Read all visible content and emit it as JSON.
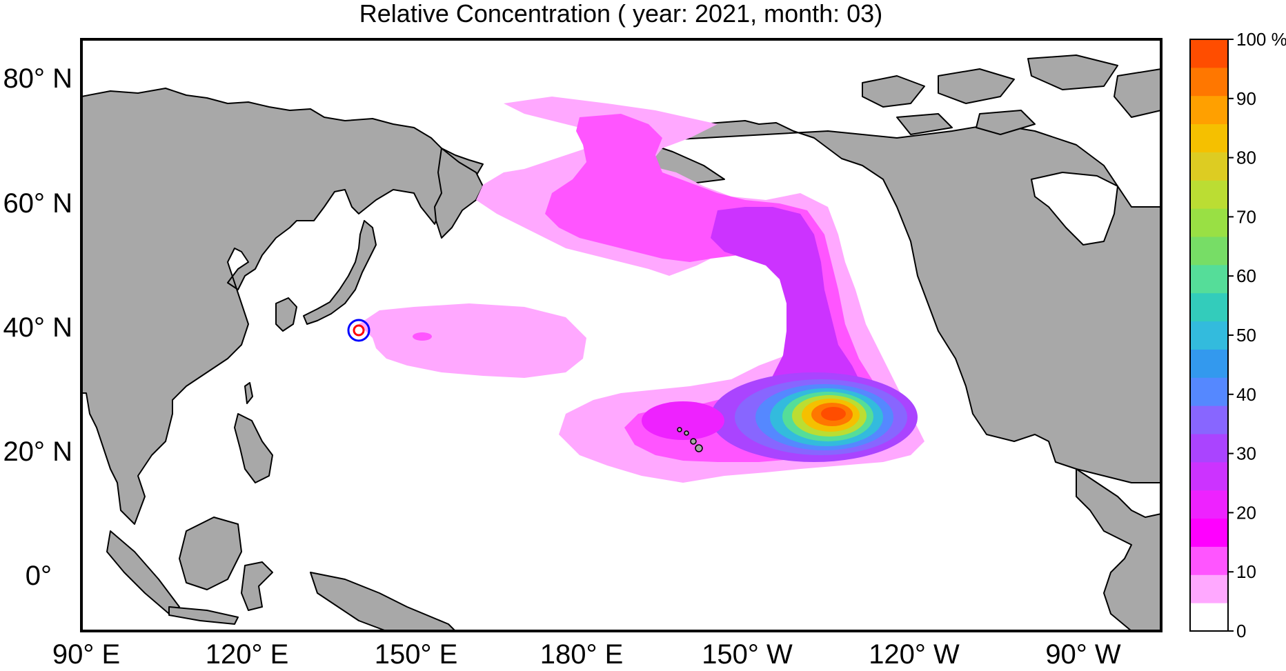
{
  "title": "Relative Concentration ( year: 2021, month: 03)",
  "lat_labels": [
    "80° N",
    "60° N",
    "40° N",
    "20° N",
    "0°"
  ],
  "lon_labels": [
    "90° E",
    "120° E",
    "150° E",
    "180° E",
    "150° W",
    "120° W",
    "90° W"
  ],
  "colorbar": {
    "tick_labels": [
      "100 %",
      "90",
      "80",
      "70",
      "60",
      "50",
      "40",
      "30",
      "20",
      "10",
      "0"
    ],
    "colors": [
      "#ffffff",
      "#ffa8ff",
      "#ff55ff",
      "#ff00ff",
      "#ee22ff",
      "#cc33ff",
      "#aa44ff",
      "#8866ff",
      "#5588ff",
      "#3399ee",
      "#33bbdd",
      "#33ccbb",
      "#55dd99",
      "#77dd66",
      "#99e044",
      "#bbdd33",
      "#ddcc22",
      "#f5c000",
      "#ffa000",
      "#ff7700",
      "#ff4d00"
    ]
  },
  "colors": {
    "land": "#a8a8a8",
    "ocean": "#ffffff",
    "release_site_outer": "#0000ff",
    "release_site_inner": "#ff0000"
  }
}
